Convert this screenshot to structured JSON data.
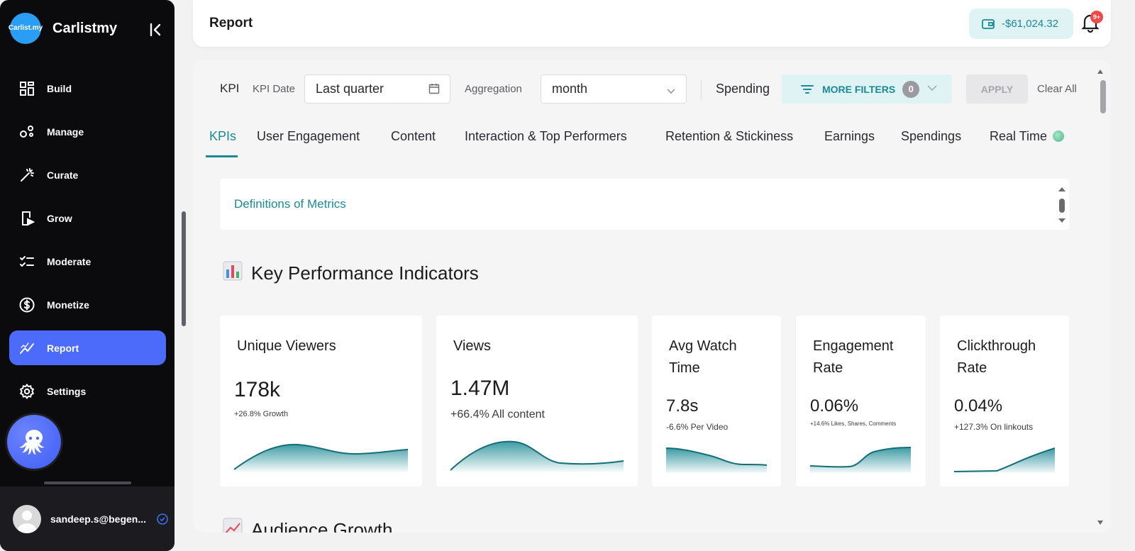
{
  "brand": {
    "name": "Carlistmy",
    "logo_text": "Carlist.my"
  },
  "sidebar": {
    "items": [
      {
        "label": "Build",
        "icon": "grid-icon",
        "active": false
      },
      {
        "label": "Manage",
        "icon": "nodes-icon",
        "active": false
      },
      {
        "label": "Curate",
        "icon": "magic-wand-icon",
        "active": false
      },
      {
        "label": "Grow",
        "icon": "play-screen-icon",
        "active": false
      },
      {
        "label": "Moderate",
        "icon": "checklist-icon",
        "active": false
      },
      {
        "label": "Monetize",
        "icon": "dollar-icon",
        "active": false
      },
      {
        "label": "Report",
        "icon": "chart-line-icon",
        "active": true
      },
      {
        "label": "Settings",
        "icon": "gear-icon",
        "active": false
      }
    ],
    "user_email": "sandeep.s@begen..."
  },
  "header": {
    "title": "Report",
    "wallet_balance": "-$61,024.32",
    "notification_badge": "9+"
  },
  "filters": {
    "kpi_label": "KPI",
    "kpi_date_label": "KPI Date",
    "kpi_date_value": "Last quarter",
    "aggregation_label": "Aggregation",
    "aggregation_value": "month",
    "spending_label": "Spending",
    "more_filters_label": "MORE FILTERS",
    "more_filters_count": "0",
    "apply_label": "APPLY",
    "clear_label": "Clear All"
  },
  "tabs": [
    {
      "label": "KPIs",
      "active": true
    },
    {
      "label": "User Engagement"
    },
    {
      "label": "Content"
    },
    {
      "label": "Interaction & Top Performers"
    },
    {
      "label": "Retention & Stickiness"
    },
    {
      "label": "Earnings"
    },
    {
      "label": "Spendings"
    },
    {
      "label": "Real Time"
    }
  ],
  "definitions_link": "Definitions of Metrics",
  "section_kpi_title": "Key Performance Indicators",
  "section_audience_title": "Audience Growth",
  "kpi_cards": [
    {
      "title": "Unique Viewers",
      "value": "178k",
      "sub": "+26.8% Growth"
    },
    {
      "title": "Views",
      "value": "1.47M",
      "sub": "+66.4% All content"
    },
    {
      "title": "Avg Watch Time",
      "value": "7.8s",
      "sub": "-6.6% Per Video"
    },
    {
      "title": "Engagement Rate",
      "value": "0.06%",
      "sub": "+14.6% Likes, Shares, Comments"
    },
    {
      "title": "Clickthrough Rate",
      "value": "0.04%",
      "sub": "+127.3% On linkouts"
    }
  ],
  "colors": {
    "accent": "#1b8a94",
    "active_nav": "#4d6bfa",
    "sidebar_bg": "#0b0b0e"
  }
}
